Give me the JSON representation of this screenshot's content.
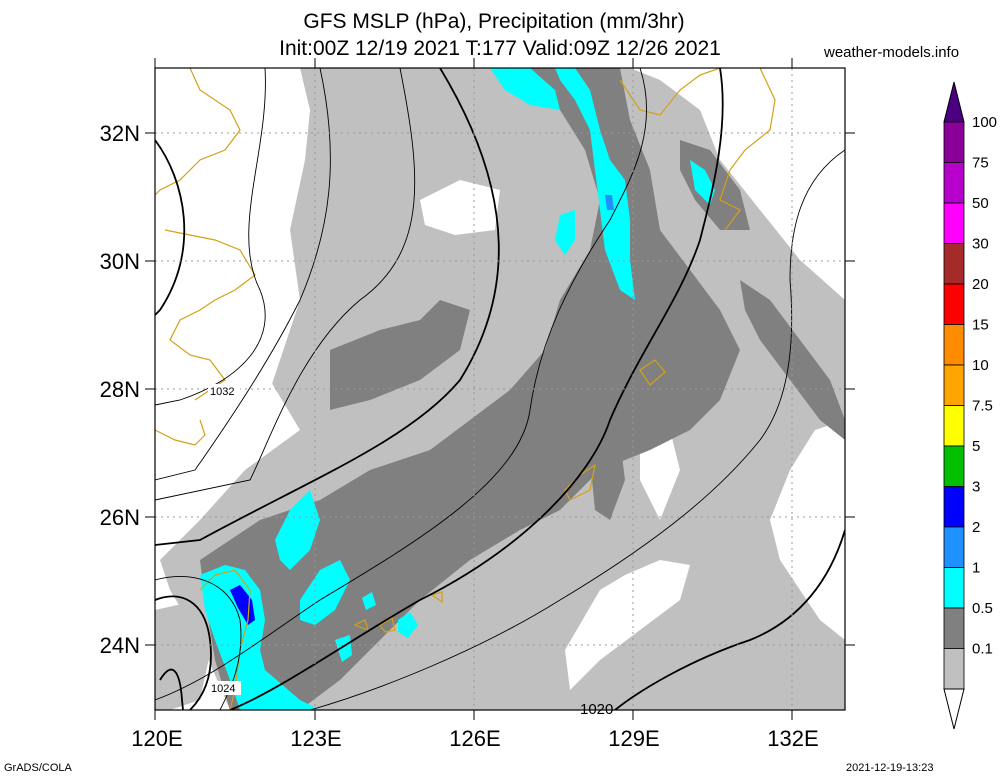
{
  "header": {
    "title_line1": "GFS MSLP (hPa), Precipitation (mm/3hr)",
    "title_line2": "Init:00Z 12/19 2021 T:177 Valid:09Z 12/26 2021",
    "site": "weather-models.info"
  },
  "axes": {
    "lat_labels": [
      "24N",
      "26N",
      "28N",
      "30N",
      "32N"
    ],
    "lon_labels": [
      "120E",
      "123E",
      "126E",
      "129E",
      "132E"
    ]
  },
  "isobar_labels": [
    "1032",
    "1024",
    "1020"
  ],
  "colorbar": {
    "labels": [
      "100",
      "75",
      "50",
      "30",
      "20",
      "15",
      "10",
      "7.5",
      "5",
      "3",
      "2",
      "1",
      "0.5",
      "0.1"
    ],
    "colors": [
      "#8a0099",
      "#b800cc",
      "#ff00ff",
      "#a52a2a",
      "#ff0000",
      "#ff8c00",
      "#ffa500",
      "#ffff00",
      "#00c000",
      "#0000ff",
      "#1e90ff",
      "#00ffff",
      "#808080",
      "#c0c0c0"
    ]
  },
  "footer": {
    "left": "GrADS/COLA",
    "right": "2021-12-19-13:23"
  }
}
